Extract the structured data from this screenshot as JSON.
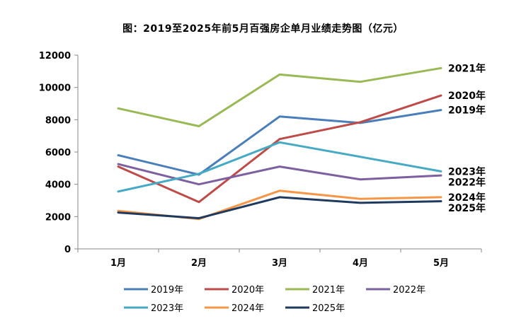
{
  "chart_data": {
    "type": "line",
    "title": "图：2019至2025年前5月百强房企单月业绩走势图（亿元）",
    "xlabel": "",
    "ylabel": "",
    "categories": [
      "1月",
      "2月",
      "3月",
      "4月",
      "5月"
    ],
    "ylim": [
      0,
      12000
    ],
    "yticks": [
      "0",
      "2000",
      "4000",
      "6000",
      "8000",
      "10000",
      "12000"
    ],
    "grid": false,
    "legend_position": "bottom",
    "series": [
      {
        "name": "2019年",
        "color": "#4a7ebb",
        "values": [
          5800,
          4600,
          8200,
          7800,
          8600
        ]
      },
      {
        "name": "2020年",
        "color": "#be4b48",
        "values": [
          5100,
          2900,
          6800,
          7850,
          9500
        ]
      },
      {
        "name": "2021年",
        "color": "#98b954",
        "values": [
          8700,
          7600,
          10800,
          10350,
          11200
        ]
      },
      {
        "name": "2022年",
        "color": "#7d60a0",
        "values": [
          5250,
          4000,
          5100,
          4300,
          4550
        ]
      },
      {
        "name": "2023年",
        "color": "#46aac5",
        "values": [
          3550,
          4650,
          6600,
          5700,
          4800
        ]
      },
      {
        "name": "2024年",
        "color": "#f79646",
        "values": [
          2350,
          1850,
          3600,
          3100,
          3200
        ]
      },
      {
        "name": "2025年",
        "color": "#1f3a5f",
        "values": [
          2250,
          1900,
          3200,
          2850,
          2950
        ]
      }
    ],
    "end_labels": [
      {
        "series": "2021年",
        "text": "2021年"
      },
      {
        "series": "2020年",
        "text": "2020年"
      },
      {
        "series": "2019年",
        "text": "2019年"
      },
      {
        "series": "2023年",
        "text": "2023年"
      },
      {
        "series": "2022年",
        "text": "2022年"
      },
      {
        "series": "2024年",
        "text": "2024年"
      },
      {
        "series": "2025年",
        "text": "2025年"
      }
    ]
  }
}
